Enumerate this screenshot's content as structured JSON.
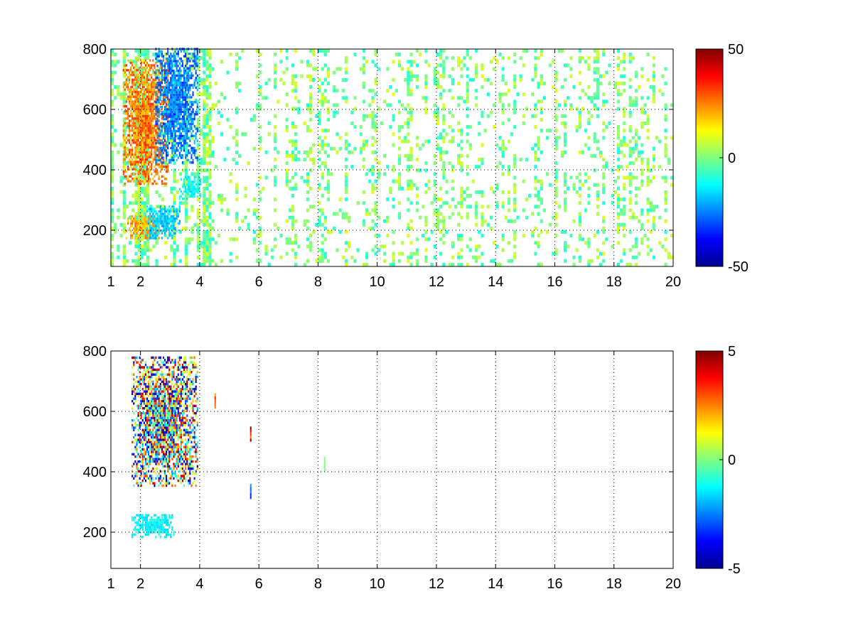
{
  "chart_data": [
    {
      "type": "heatmap",
      "title": "",
      "xlabel": "",
      "ylabel": "",
      "xlim": [
        1,
        20
      ],
      "ylim": [
        80,
        800
      ],
      "x_ticks": [
        1,
        2,
        4,
        6,
        8,
        10,
        12,
        14,
        16,
        18,
        20
      ],
      "x_tick_labels": [
        "1",
        "2",
        "4",
        "6",
        "8",
        "10",
        "12",
        "14",
        "16",
        "18",
        "20"
      ],
      "x_grid": [
        2,
        4,
        6,
        8,
        10,
        12,
        14,
        16,
        18,
        20
      ],
      "y_ticks": [
        200,
        400,
        600,
        800
      ],
      "y_tick_labels": [
        "200",
        "400",
        "600",
        "800"
      ],
      "grid": true,
      "colormap": "jet",
      "colorbar": {
        "min": -50,
        "max": 50,
        "ticks": [
          50,
          0,
          -50
        ],
        "tick_labels": [
          "50",
          "0",
          "-50"
        ]
      },
      "regions": [
        {
          "x": [
            1.4,
            2.9
          ],
          "y": [
            350,
            760
          ],
          "value": 30
        },
        {
          "x": [
            2.5,
            3.9
          ],
          "y": [
            420,
            800
          ],
          "value": -30
        },
        {
          "x": [
            1.5,
            2.6
          ],
          "y": [
            170,
            250
          ],
          "value": 25
        },
        {
          "x": [
            2.2,
            3.3
          ],
          "y": [
            170,
            280
          ],
          "value": -20
        },
        {
          "x": [
            3.3,
            4.0
          ],
          "y": [
            300,
            380
          ],
          "value": -15
        }
      ],
      "sparse_noise": {
        "x": [
          1,
          20
        ],
        "y": [
          80,
          800
        ],
        "value_range": [
          -10,
          10
        ],
        "density": "moderate"
      }
    },
    {
      "type": "heatmap",
      "title": "",
      "xlabel": "",
      "ylabel": "",
      "xlim": [
        1,
        20
      ],
      "ylim": [
        80,
        800
      ],
      "x_ticks": [
        1,
        2,
        4,
        6,
        8,
        10,
        12,
        14,
        16,
        18,
        20
      ],
      "x_tick_labels": [
        "1",
        "2",
        "4",
        "6",
        "8",
        "10",
        "12",
        "14",
        "16",
        "18",
        "20"
      ],
      "x_grid": [
        2,
        4,
        6,
        8,
        10,
        12,
        14,
        16,
        18,
        20
      ],
      "y_ticks": [
        200,
        400,
        600,
        800
      ],
      "y_tick_labels": [
        "200",
        "400",
        "600",
        "800"
      ],
      "grid": true,
      "colormap": "jet",
      "colorbar": {
        "min": -5,
        "max": 5,
        "ticks": [
          5,
          0,
          -5
        ],
        "tick_labels": [
          "5",
          "0",
          "-5"
        ]
      },
      "regions": [
        {
          "x": [
            1.7,
            3.9
          ],
          "y": [
            350,
            780
          ],
          "value_range": [
            -5,
            5
          ]
        },
        {
          "x": [
            1.7,
            3.1
          ],
          "y": [
            180,
            260
          ],
          "value": -1.5
        }
      ],
      "isolated_cells": [
        {
          "x": 5.7,
          "y": 520,
          "value": 4
        },
        {
          "x": 5.7,
          "y": 330,
          "value": -3
        },
        {
          "x": 4.5,
          "y": 630,
          "value": 3
        },
        {
          "x": 8.2,
          "y": 420,
          "value": 0
        }
      ]
    }
  ]
}
